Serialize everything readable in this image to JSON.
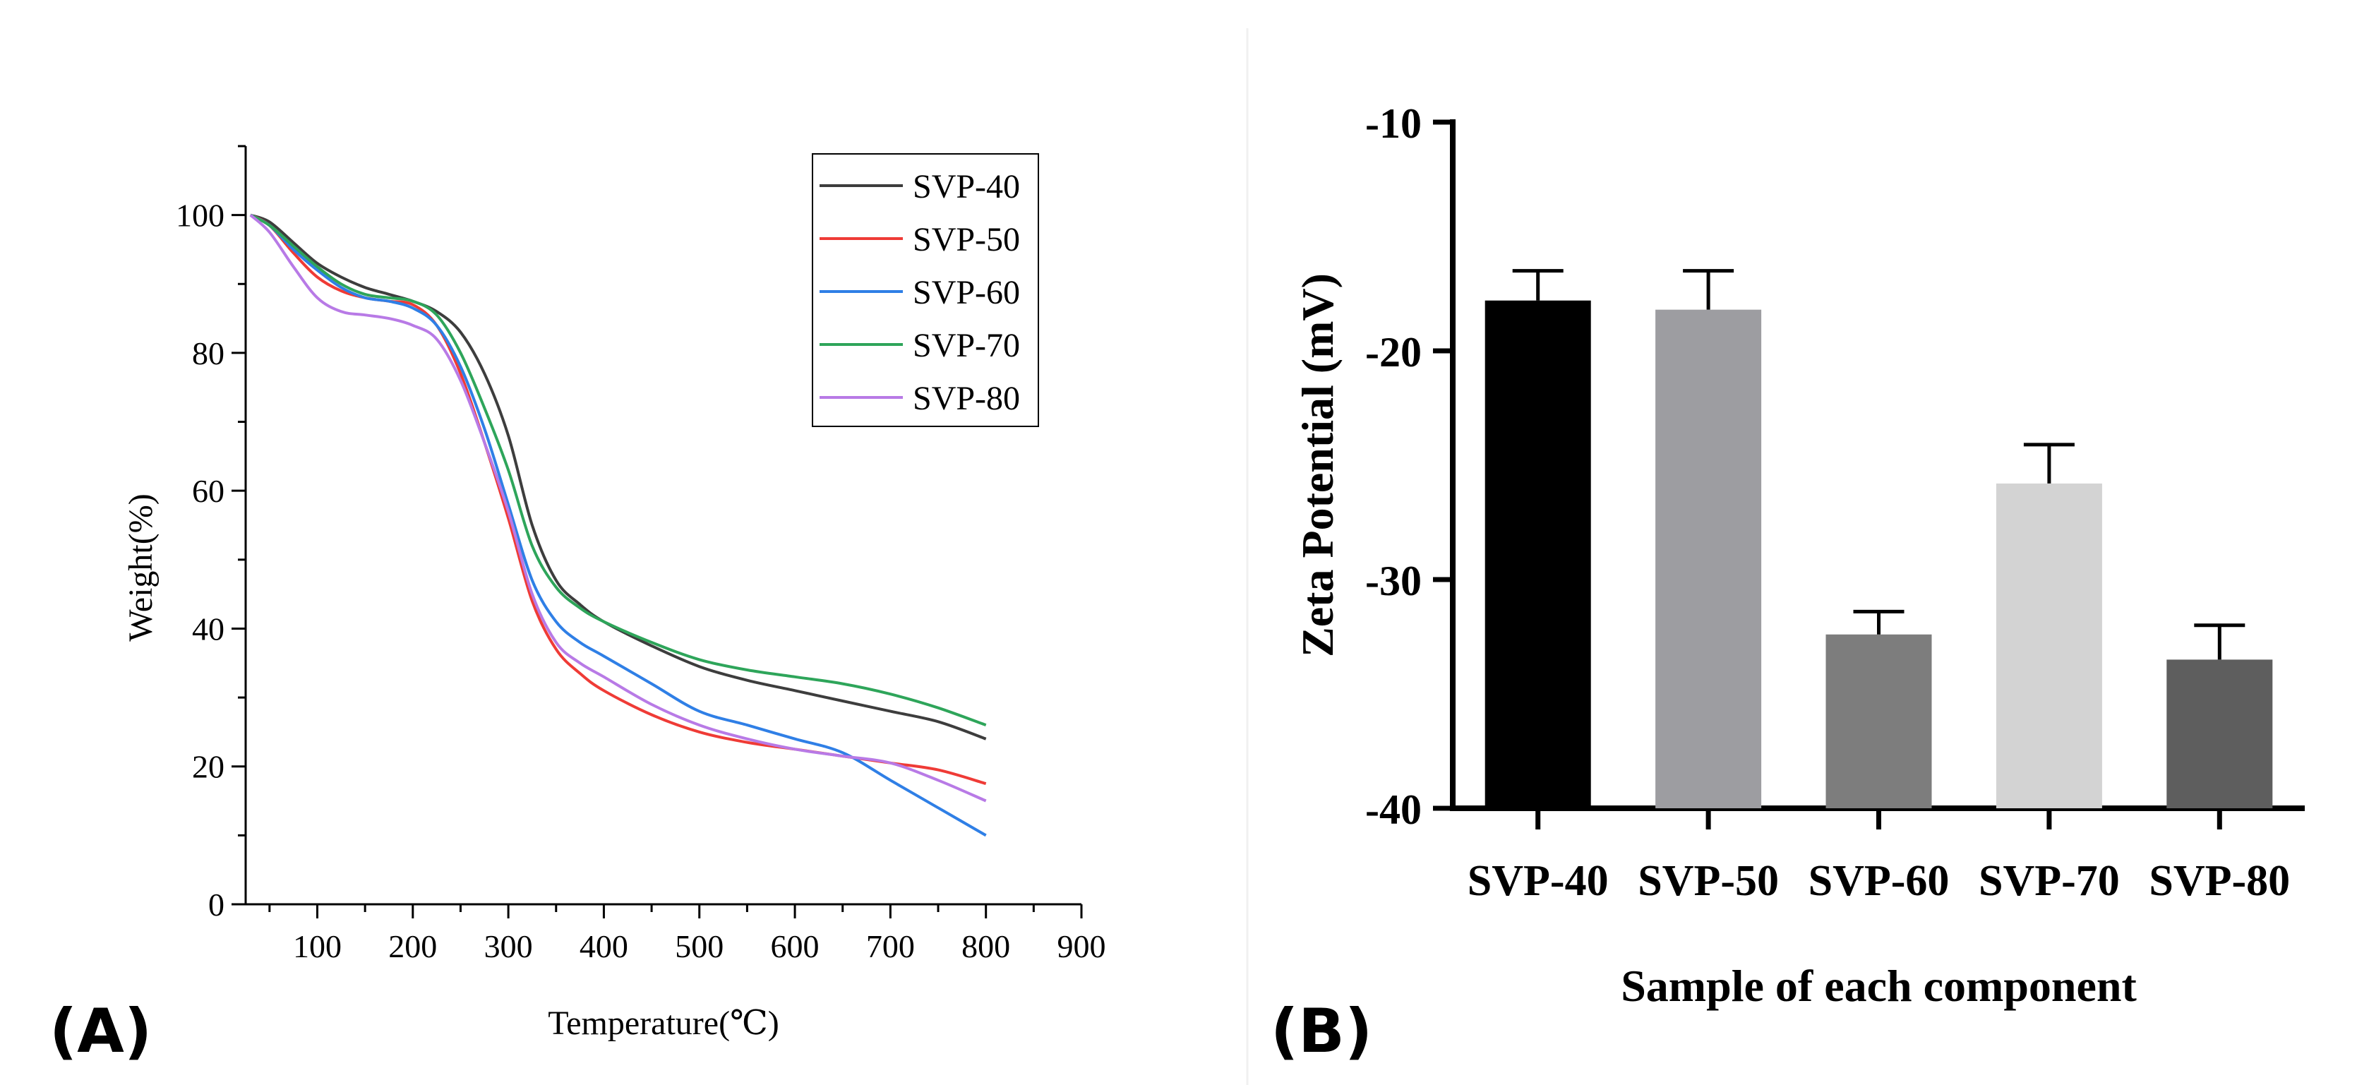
{
  "panels": {
    "a": {
      "label": "(A)"
    },
    "b": {
      "label": "(B)"
    }
  },
  "chart_data": [
    {
      "type": "line",
      "xlabel": "Temperature(℃)",
      "ylabel": "Weight(%)",
      "xlim": [
        25,
        900
      ],
      "ylim": [
        0,
        110
      ],
      "x_ticks": [
        100,
        200,
        300,
        400,
        500,
        600,
        700,
        800,
        900
      ],
      "y_ticks": [
        0,
        20,
        40,
        60,
        80,
        100
      ],
      "grid": false,
      "legend_position": "top-right",
      "series": [
        {
          "name": "SVP-40",
          "color": "#3d3d3d",
          "x": [
            30,
            50,
            75,
            100,
            125,
            150,
            175,
            200,
            225,
            250,
            275,
            300,
            325,
            350,
            375,
            400,
            450,
            500,
            550,
            600,
            650,
            700,
            750,
            800
          ],
          "y": [
            100,
            99,
            96,
            93,
            91,
            89.5,
            88.5,
            87.5,
            86,
            83,
            77,
            68,
            55,
            47,
            43.5,
            41,
            37.5,
            34.5,
            32.5,
            31,
            29.5,
            28,
            26.5,
            24
          ]
        },
        {
          "name": "SVP-50",
          "color": "#ef3b36",
          "x": [
            30,
            50,
            75,
            100,
            125,
            150,
            175,
            200,
            225,
            250,
            275,
            300,
            325,
            350,
            375,
            400,
            450,
            500,
            550,
            600,
            650,
            700,
            750,
            800
          ],
          "y": [
            100,
            98.5,
            94.5,
            91,
            89,
            88,
            87.5,
            87,
            84,
            77,
            67,
            56,
            44,
            37,
            33.5,
            31,
            27.5,
            25,
            23.5,
            22.5,
            21.5,
            20.5,
            19.5,
            17.5
          ]
        },
        {
          "name": "SVP-60",
          "color": "#2f7fe6",
          "x": [
            30,
            50,
            75,
            100,
            125,
            150,
            175,
            200,
            225,
            250,
            275,
            300,
            325,
            350,
            375,
            400,
            450,
            500,
            550,
            600,
            650,
            700,
            750,
            800
          ],
          "y": [
            100,
            98.5,
            95,
            92,
            89.5,
            88,
            87.5,
            86.5,
            84,
            78,
            69,
            58,
            47,
            41,
            38,
            36,
            32,
            28,
            26,
            24,
            22,
            18,
            14,
            10
          ]
        },
        {
          "name": "SVP-70",
          "color": "#2ea55a",
          "x": [
            30,
            50,
            75,
            100,
            125,
            150,
            175,
            200,
            225,
            250,
            275,
            300,
            325,
            350,
            375,
            400,
            450,
            500,
            550,
            600,
            650,
            700,
            750,
            800
          ],
          "y": [
            100,
            98.5,
            95.5,
            92.5,
            90,
            88.5,
            88,
            87.5,
            85.5,
            80,
            72,
            63,
            52,
            46,
            43,
            41,
            38,
            35.5,
            34,
            33,
            32,
            30.5,
            28.5,
            26
          ]
        },
        {
          "name": "SVP-80",
          "color": "#b87ae6",
          "x": [
            30,
            50,
            75,
            100,
            125,
            150,
            175,
            200,
            225,
            250,
            275,
            300,
            325,
            350,
            375,
            400,
            450,
            500,
            550,
            600,
            650,
            700,
            750,
            800
          ],
          "y": [
            100,
            97.5,
            92.5,
            88,
            86,
            85.5,
            85,
            84,
            82,
            76,
            67,
            57,
            45,
            38,
            35,
            33,
            29,
            26,
            24,
            22.5,
            21.5,
            20.5,
            18,
            15
          ]
        }
      ]
    },
    {
      "type": "bar",
      "xlabel": "Sample of each component",
      "ylabel": "Zeta Potential (mV)",
      "ylim": [
        -40,
        -10
      ],
      "y_ticks": [
        -10,
        -20,
        -30,
        -40
      ],
      "grid": false,
      "categories": [
        "SVP-40",
        "SVP-50",
        "SVP-60",
        "SVP-70",
        "SVP-80"
      ],
      "values": [
        -17.8,
        -18.2,
        -32.4,
        -25.8,
        -33.5
      ],
      "errors": [
        1.3,
        1.7,
        1.0,
        1.7,
        1.5
      ],
      "colors": [
        "#000000",
        "#9d9da1",
        "#7d7d7d",
        "#d3d3d3",
        "#5e5e5e"
      ]
    }
  ]
}
